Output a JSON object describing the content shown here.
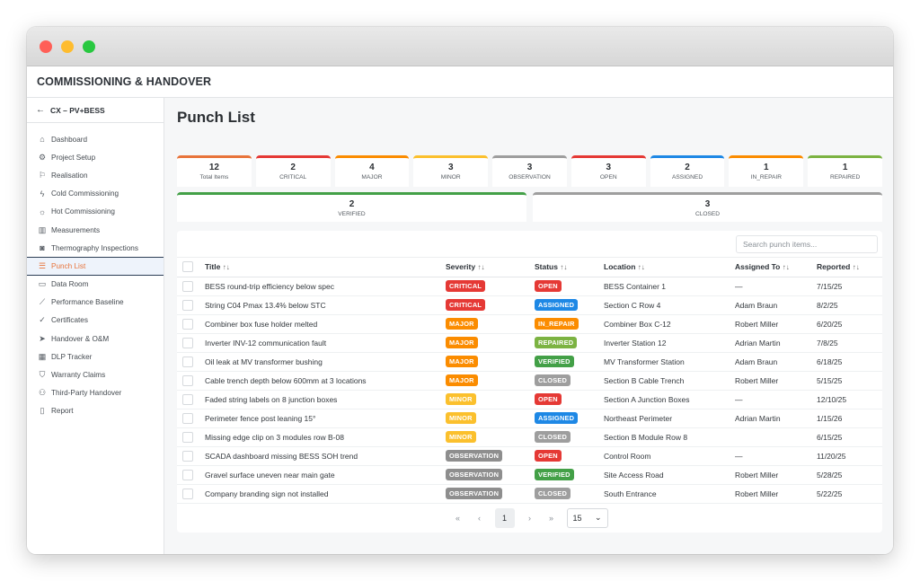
{
  "app": {
    "title": "COMMISSIONING & HANDOVER"
  },
  "sidebar": {
    "project": "CX – PV+BESS",
    "items": [
      {
        "label": "Dashboard",
        "icon": "home-icon",
        "glyph": "⌂"
      },
      {
        "label": "Project Setup",
        "icon": "gear-icon",
        "glyph": "⚙"
      },
      {
        "label": "Realisation",
        "icon": "flag-icon",
        "glyph": "⚐"
      },
      {
        "label": "Cold Commissioning",
        "icon": "bolt-icon",
        "glyph": "ϟ"
      },
      {
        "label": "Hot Commissioning",
        "icon": "sun-icon",
        "glyph": "☼"
      },
      {
        "label": "Measurements",
        "icon": "bar-chart-icon",
        "glyph": "▥"
      },
      {
        "label": "Thermography Inspections",
        "icon": "camera-icon",
        "glyph": "◙"
      },
      {
        "label": "Punch List",
        "icon": "list-icon",
        "glyph": "☰"
      },
      {
        "label": "Data Room",
        "icon": "folder-icon",
        "glyph": "▭"
      },
      {
        "label": "Performance Baseline",
        "icon": "trend-icon",
        "glyph": "⟋"
      },
      {
        "label": "Certificates",
        "icon": "check-circle-icon",
        "glyph": "✓"
      },
      {
        "label": "Handover & O&M",
        "icon": "send-icon",
        "glyph": "➤"
      },
      {
        "label": "DLP Tracker",
        "icon": "calendar-icon",
        "glyph": "▦"
      },
      {
        "label": "Warranty Claims",
        "icon": "shield-icon",
        "glyph": "⛉"
      },
      {
        "label": "Third-Party Handover",
        "icon": "users-icon",
        "glyph": "⚇"
      },
      {
        "label": "Report",
        "icon": "document-icon",
        "glyph": "▯"
      }
    ]
  },
  "main": {
    "title": "Punch List",
    "cards": [
      {
        "num": "12",
        "label": "Total Items",
        "color": "#e8743b"
      },
      {
        "num": "2",
        "label": "CRITICAL",
        "color": "#e53935"
      },
      {
        "num": "4",
        "label": "MAJOR",
        "color": "#fb8c00"
      },
      {
        "num": "3",
        "label": "MINOR",
        "color": "#fbc02d"
      },
      {
        "num": "3",
        "label": "OBSERVATION",
        "color": "#9e9e9e"
      },
      {
        "num": "3",
        "label": "OPEN",
        "color": "#e53935"
      },
      {
        "num": "2",
        "label": "ASSIGNED",
        "color": "#1e88e5"
      },
      {
        "num": "1",
        "label": "IN_REPAIR",
        "color": "#fb8c00"
      },
      {
        "num": "1",
        "label": "REPAIRED",
        "color": "#7cb342"
      }
    ],
    "cards2": [
      {
        "num": "2",
        "label": "VERIFIED",
        "color": "#43a047"
      },
      {
        "num": "3",
        "label": "CLOSED",
        "color": "#9e9e9e"
      }
    ],
    "search": {
      "placeholder": "Search punch items..."
    },
    "columns": {
      "title": "Title",
      "severity": "Severity",
      "status": "Status",
      "location": "Location",
      "assigned": "Assigned To",
      "reported": "Reported",
      "sort_glyph": "↑↓"
    },
    "severity_colors": {
      "CRITICAL": "#e53935",
      "MAJOR": "#fb8c00",
      "MINOR": "#fbc02d",
      "OBSERVATION": "#8e8e8e"
    },
    "status_colors": {
      "OPEN": "#e53935",
      "ASSIGNED": "#1e88e5",
      "IN_REPAIR": "#fb8c00",
      "REPAIRED": "#7cb342",
      "VERIFIED": "#43a047",
      "CLOSED": "#9e9e9e"
    },
    "rows": [
      {
        "title": "BESS round-trip efficiency below spec",
        "severity": "CRITICAL",
        "status": "OPEN",
        "location": "BESS Container 1",
        "assigned": "—",
        "reported": "7/15/25"
      },
      {
        "title": "String C04 Pmax 13.4% below STC",
        "severity": "CRITICAL",
        "status": "ASSIGNED",
        "location": "Section C Row 4",
        "assigned": "Adam Braun",
        "reported": "8/2/25"
      },
      {
        "title": "Combiner box fuse holder melted",
        "severity": "MAJOR",
        "status": "IN_REPAIR",
        "location": "Combiner Box C-12",
        "assigned": "Robert Miller",
        "reported": "6/20/25"
      },
      {
        "title": "Inverter INV-12 communication fault",
        "severity": "MAJOR",
        "status": "REPAIRED",
        "location": "Inverter Station 12",
        "assigned": "Adrian Martin",
        "reported": "7/8/25"
      },
      {
        "title": "Oil leak at MV transformer bushing",
        "severity": "MAJOR",
        "status": "VERIFIED",
        "location": "MV Transformer Station",
        "assigned": "Adam Braun",
        "reported": "6/18/25"
      },
      {
        "title": "Cable trench depth below 600mm at 3 locations",
        "severity": "MAJOR",
        "status": "CLOSED",
        "location": "Section B Cable Trench",
        "assigned": "Robert Miller",
        "reported": "5/15/25"
      },
      {
        "title": "Faded string labels on 8 junction boxes",
        "severity": "MINOR",
        "status": "OPEN",
        "location": "Section A Junction Boxes",
        "assigned": "—",
        "reported": "12/10/25"
      },
      {
        "title": "Perimeter fence post leaning 15°",
        "severity": "MINOR",
        "status": "ASSIGNED",
        "location": "Northeast Perimeter",
        "assigned": "Adrian Martin",
        "reported": "1/15/26"
      },
      {
        "title": "Missing edge clip on 3 modules row B-08",
        "severity": "MINOR",
        "status": "CLOSED",
        "location": "Section B Module Row 8",
        "assigned": "",
        "reported": "6/15/25"
      },
      {
        "title": "SCADA dashboard missing BESS SOH trend",
        "severity": "OBSERVATION",
        "status": "OPEN",
        "location": "Control Room",
        "assigned": "—",
        "reported": "11/20/25"
      },
      {
        "title": "Gravel surface uneven near main gate",
        "severity": "OBSERVATION",
        "status": "VERIFIED",
        "location": "Site Access Road",
        "assigned": "Robert Miller",
        "reported": "5/28/25"
      },
      {
        "title": "Company branding sign not installed",
        "severity": "OBSERVATION",
        "status": "CLOSED",
        "location": "South Entrance",
        "assigned": "Robert Miller",
        "reported": "5/22/25"
      }
    ],
    "pagination": {
      "first": "«",
      "prev": "‹",
      "page": "1",
      "next": "›",
      "last": "»",
      "page_size": "15",
      "caret": "⌄"
    }
  }
}
